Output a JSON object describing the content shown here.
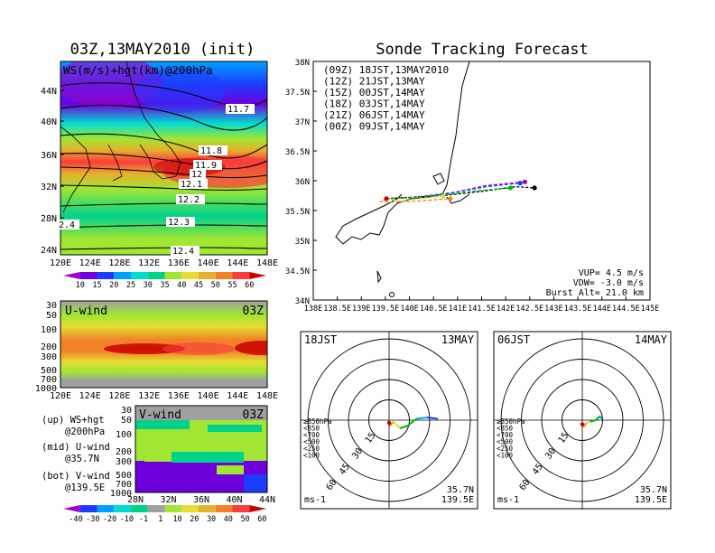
{
  "left_title": "03Z,13MAY2010 (init)",
  "right_title": "Sonde Tracking Forecast",
  "map_panel": {
    "label": "WS(m/s)+hgt(km)@200hPa",
    "lat_ticks": [
      "44N",
      "40N",
      "36N",
      "32N",
      "28N",
      "24N"
    ],
    "lon_ticks": [
      "120E",
      "124E",
      "128E",
      "132E",
      "136E",
      "140E",
      "144E",
      "148E"
    ],
    "contour_labels": [
      "11.7",
      "11.8",
      "11.9",
      "12",
      "12.1",
      "12.2",
      "12.3",
      "12.4",
      "2.4"
    ],
    "colorbar_labels": [
      "10",
      "15",
      "20",
      "25",
      "30",
      "35",
      "40",
      "45",
      "50",
      "55",
      "60"
    ],
    "colorbar_colors": [
      "#a000c8",
      "#6e00dc",
      "#1e3cff",
      "#00a0ff",
      "#00dcd2",
      "#00d28c",
      "#a0e632",
      "#e6dc32",
      "#e6af2d",
      "#f08228",
      "#fa3c3c",
      "#c80000"
    ]
  },
  "u_panel": {
    "label": "U-wind",
    "time": "03Z",
    "p_ticks": [
      "30",
      "50",
      "100",
      "200",
      "300",
      "500",
      "700",
      "1000"
    ],
    "lon_ticks": [
      "120E",
      "124E",
      "128E",
      "132E",
      "136E",
      "140E",
      "144E",
      "148E"
    ]
  },
  "v_panel": {
    "label": "V-wind",
    "time": "03Z",
    "p_ticks": [
      "30",
      "50",
      "100",
      "200",
      "300",
      "500",
      "700",
      "1000"
    ],
    "lat_ticks": [
      "28N",
      "32N",
      "36N",
      "40N",
      "44N"
    ]
  },
  "legend_notes": [
    {
      "a": "(up) WS+hgt",
      "b": "@200hPa"
    },
    {
      "a": "(mid) U-wind",
      "b": "@35.7N"
    },
    {
      "a": "(bot) V-wind",
      "b": "@139.5E"
    }
  ],
  "wind_colorbar": {
    "labels": [
      "-40",
      "-30",
      "-20",
      "-10",
      "-1",
      "1",
      "10",
      "20",
      "30",
      "40",
      "50",
      "60"
    ],
    "colors": [
      "#a000c8",
      "#1e3cff",
      "#00a0ff",
      "#00dcd2",
      "#00d28c",
      "#a0a0a0",
      "#a0e632",
      "#e6dc32",
      "#e6af2d",
      "#f08228",
      "#fa3c3c",
      "#c80000"
    ]
  },
  "track_map": {
    "legend": [
      {
        "text": "(09Z) 18JST,13MAY2010",
        "color": "#000000"
      },
      {
        "text": "(12Z) 21JST,13MAY",
        "color": "#a000c8"
      },
      {
        "text": "(15Z) 00JST,14MAY",
        "color": "#1e3cff"
      },
      {
        "text": "(18Z) 03JST,14MAY",
        "color": "#00b400"
      },
      {
        "text": "(21Z) 06JST,14MAY",
        "color": "#e6dc32"
      },
      {
        "text": "(00Z) 09JST,14MAY",
        "color": "#f08228"
      }
    ],
    "lat_ticks": [
      "38N",
      "37.5N",
      "37N",
      "36.5N",
      "36N",
      "35.5N",
      "35N",
      "34.5N",
      "34N"
    ],
    "lon_ticks": [
      "138E",
      "138.5E",
      "139E",
      "139.5E",
      "140E",
      "140.5E",
      "141E",
      "141.5E",
      "142E",
      "142.5E",
      "143E",
      "143.5E",
      "144E",
      "144.5E",
      "145E"
    ],
    "info": [
      "VUP= 4.5 m/s",
      "VDW= -3.0 m/s",
      "Burst Alt= 21.0 km"
    ]
  },
  "chart_data": [
    {
      "type": "line",
      "name": "Sonde tracks",
      "xlim": [
        138,
        145
      ],
      "ylim": [
        34,
        38
      ],
      "series": [
        {
          "name": "(09Z) 18JST,13MAY2010",
          "color": "#000000",
          "x": [
            139.52,
            140.0,
            140.8,
            141.5,
            142.2,
            142.6
          ],
          "y": [
            35.7,
            35.72,
            35.76,
            35.82,
            35.9,
            35.88
          ]
        },
        {
          "name": "(12Z) 21JST,13MAY",
          "color": "#a000c8",
          "x": [
            139.52,
            140.1,
            140.9,
            141.6,
            142.4
          ],
          "y": [
            35.7,
            35.72,
            35.8,
            35.92,
            35.98
          ]
        },
        {
          "name": "(15Z) 00JST,14MAY",
          "color": "#1e3cff",
          "x": [
            139.52,
            140.2,
            140.9,
            141.6,
            142.3
          ],
          "y": [
            35.7,
            35.73,
            35.8,
            35.9,
            35.96
          ]
        },
        {
          "name": "(18Z) 03JST,14MAY",
          "color": "#00b400",
          "x": [
            139.52,
            140.2,
            140.9,
            141.5,
            142.1
          ],
          "y": [
            35.7,
            35.72,
            35.78,
            35.84,
            35.88
          ]
        },
        {
          "name": "(21Z) 06JST,14MAY",
          "color": "#e6dc32",
          "x": [
            139.52,
            139.8,
            140.2,
            140.7
          ],
          "y": [
            35.7,
            35.66,
            35.7,
            35.74
          ]
        },
        {
          "name": "(00Z) 09JST,14MAY",
          "color": "#f08228",
          "x": [
            139.52,
            139.4,
            139.6,
            140.2,
            140.85
          ],
          "y": [
            35.7,
            35.65,
            35.64,
            35.66,
            35.7
          ]
        }
      ]
    },
    {
      "type": "scatter",
      "name": "Hodograph 18JST 13MAY",
      "title_left": "18JST",
      "title_right": "13MAY",
      "rings": [
        "15",
        "30",
        "45",
        "60"
      ],
      "legend": [
        {
          "text": "≥850hPa",
          "color": "#c80000"
        },
        {
          "text": "<850",
          "color": "#f08228"
        },
        {
          "text": "<700",
          "color": "#e6dc32"
        },
        {
          "text": "<500",
          "color": "#00b400"
        },
        {
          "text": "<250",
          "color": "#00b4dc"
        },
        {
          "text": "<100",
          "color": "#1e3cff"
        }
      ],
      "unit": "ms-1",
      "loc": [
        "35.7N",
        "139.5E"
      ],
      "u": [
        0,
        1,
        3,
        8,
        14,
        20,
        28,
        36
      ],
      "v": [
        -2,
        -4,
        -1,
        -6,
        -4,
        1,
        2,
        1
      ]
    },
    {
      "type": "scatter",
      "name": "Hodograph 06JST 14MAY",
      "title_left": "06JST",
      "title_right": "14MAY",
      "rings": [
        "15",
        "30",
        "45",
        "60"
      ],
      "legend": [
        {
          "text": "≥850hPa",
          "color": "#c80000"
        },
        {
          "text": "<850",
          "color": "#f08228"
        },
        {
          "text": "<700",
          "color": "#e6dc32"
        },
        {
          "text": "<500",
          "color": "#00b400"
        },
        {
          "text": "<250",
          "color": "#00b4dc"
        },
        {
          "text": "<100",
          "color": "#1e3cff"
        }
      ],
      "unit": "ms-1",
      "loc": [
        "35.7N",
        "139.5E"
      ],
      "u": [
        0,
        1,
        3,
        6,
        10,
        13,
        15,
        14
      ],
      "v": [
        -3,
        -5,
        -2,
        -1,
        0,
        3,
        1,
        2
      ]
    }
  ]
}
